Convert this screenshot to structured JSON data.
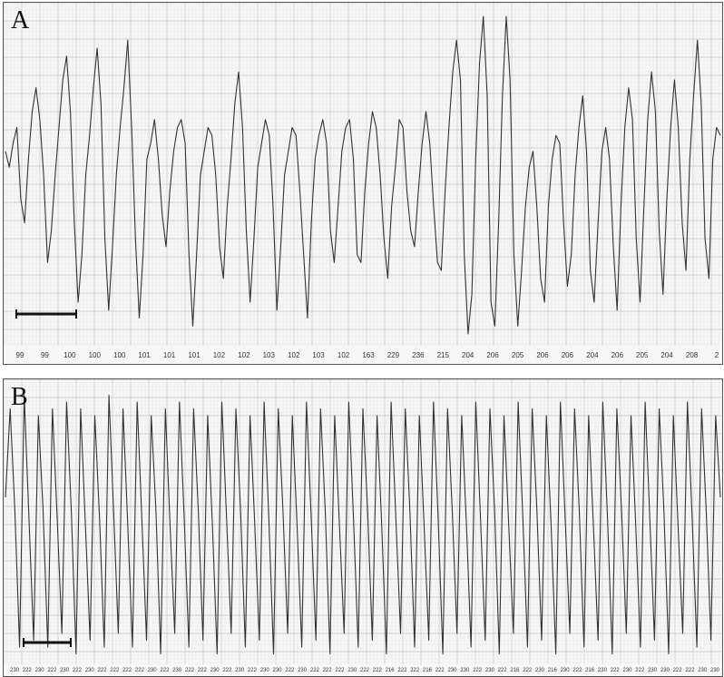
{
  "figure": {
    "panel_a_label": "A",
    "panel_b_label": "B"
  },
  "chart_data": [
    {
      "type": "line",
      "panel": "A",
      "title": "A",
      "xlabel": "",
      "ylabel": "",
      "grid": true,
      "scale_bar": true,
      "trace_color": "#333333",
      "grid_color": "#d8d8d8",
      "series": [
        {
          "values": [
            0.15,
            0.05,
            0.2,
            0.3,
            -0.15,
            -0.3,
            0.1,
            0.4,
            0.55,
            0.35,
            0.0,
            -0.55,
            -0.35,
            0.0,
            0.3,
            0.6,
            0.75,
            0.4,
            -0.3,
            -0.8,
            -0.5,
            0.0,
            0.25,
            0.55,
            0.8,
            0.45,
            -0.4,
            -0.85,
            -0.45,
            0.0,
            0.3,
            0.55,
            0.85,
            0.3,
            -0.4,
            -0.9,
            -0.5,
            0.1,
            0.2,
            0.35,
            0.1,
            -0.25,
            -0.45,
            -0.1,
            0.15,
            0.3,
            0.35,
            0.2,
            -0.5,
            -0.95,
            -0.5,
            0.0,
            0.15,
            0.3,
            0.25,
            0.0,
            -0.45,
            -0.65,
            -0.2,
            0.1,
            0.45,
            0.65,
            0.3,
            -0.35,
            -0.8,
            -0.4,
            0.05,
            0.2,
            0.35,
            0.25,
            -0.2,
            -0.85,
            -0.45,
            0.0,
            0.15,
            0.3,
            0.25,
            -0.1,
            -0.5,
            -0.9,
            -0.3,
            0.1,
            0.25,
            0.35,
            0.2,
            -0.35,
            -0.55,
            -0.2,
            0.15,
            0.3,
            0.35,
            0.1,
            -0.5,
            -0.55,
            -0.1,
            0.2,
            0.4,
            0.3,
            0.0,
            -0.4,
            -0.65,
            -0.2,
            0.05,
            0.35,
            0.3,
            -0.1,
            -0.35,
            -0.45,
            -0.1,
            0.2,
            0.4,
            0.2,
            -0.2,
            -0.55,
            -0.6,
            -0.1,
            0.3,
            0.65,
            0.85,
            0.6,
            -0.5,
            -1.0,
            -0.75,
            0.1,
            0.7,
            1.0,
            0.5,
            -0.8,
            -0.95,
            -0.3,
            0.5,
            1.0,
            0.6,
            -0.5,
            -0.95,
            -0.6,
            -0.2,
            0.05,
            0.15,
            -0.2,
            -0.65,
            -0.8,
            -0.2,
            0.1,
            0.25,
            0.2,
            -0.3,
            -0.7,
            -0.5,
            0.0,
            0.3,
            0.5,
            0.15,
            -0.6,
            -0.8,
            -0.3,
            0.15,
            0.3,
            0.1,
            -0.45,
            -0.85,
            -0.2,
            0.3,
            0.55,
            0.35,
            -0.4,
            -0.8,
            -0.2,
            0.35,
            0.65,
            0.4,
            -0.35,
            -0.75,
            -0.15,
            0.3,
            0.6,
            0.3,
            -0.3,
            -0.6,
            0.1,
            0.5,
            0.85,
            0.45,
            -0.4,
            -0.65,
            0.1,
            0.3,
            0.25
          ]
        }
      ],
      "x_labels": [
        "99",
        "99",
        "100",
        "100",
        "100",
        "101",
        "101",
        "101",
        "102",
        "102",
        "103",
        "102",
        "103",
        "102",
        "163",
        "229",
        "236",
        "215",
        "204",
        "206",
        "205",
        "206",
        "206",
        "204",
        "206",
        "205",
        "204",
        "208",
        "2"
      ]
    },
    {
      "type": "line",
      "panel": "B",
      "title": "B",
      "xlabel": "",
      "ylabel": "",
      "grid": true,
      "scale_bar": true,
      "trace_color": "#333333",
      "grid_color": "#d8d8d8",
      "series": [
        {
          "values": [
            0.2,
            0.85,
            0.1,
            -0.9,
            0.95,
            0.05,
            -0.85,
            0.8,
            0.1,
            -0.9,
            0.85,
            0.05,
            -0.8,
            0.9,
            0.1,
            -0.95,
            0.85,
            0.0,
            -0.85,
            0.8,
            0.05,
            -0.9,
            0.95,
            0.1,
            -0.8,
            0.85,
            0.0,
            -0.9,
            0.9,
            0.05,
            -0.85,
            0.8,
            0.1,
            -0.95,
            0.85,
            0.0,
            -0.8,
            0.9,
            0.05,
            -0.9,
            0.85,
            0.1,
            -0.85,
            0.8,
            0.0,
            -0.95,
            0.9,
            0.05,
            -0.8,
            0.85,
            0.1,
            -0.9,
            0.8,
            0.0,
            -0.85,
            0.9,
            0.05,
            -0.95,
            0.85,
            0.1,
            -0.8,
            0.8,
            0.0,
            -0.9,
            0.9,
            0.05,
            -0.85,
            0.85,
            0.1,
            -0.95,
            0.8,
            0.0,
            -0.8,
            0.9,
            0.05,
            -0.9,
            0.85,
            0.1,
            -0.85,
            0.8,
            0.0,
            -0.95,
            0.9,
            0.05,
            -0.8,
            0.85,
            0.1,
            -0.9,
            0.8,
            0.0,
            -0.85,
            0.9,
            0.05,
            -0.95,
            0.85,
            0.1,
            -0.8,
            0.8,
            0.0,
            -0.9,
            0.9,
            0.05,
            -0.85,
            0.85,
            0.1,
            -0.95,
            0.8,
            0.0,
            -0.8,
            0.9,
            0.05,
            -0.9,
            0.85,
            0.1,
            -0.85,
            0.8,
            0.0,
            -0.95,
            0.9,
            0.05,
            -0.8,
            0.85,
            0.1,
            -0.9,
            0.8,
            0.0,
            -0.85,
            0.9,
            0.05,
            -0.95,
            0.85,
            0.1,
            -0.8,
            0.8,
            0.0,
            -0.9,
            0.9,
            0.05,
            -0.85,
            0.85,
            0.1,
            -0.95,
            0.8,
            0.0,
            -0.8,
            0.9,
            0.05,
            -0.9,
            0.85,
            0.1,
            -0.85,
            0.8,
            0.2
          ]
        }
      ],
      "x_labels": [
        "230",
        "222",
        "230",
        "222",
        "230",
        "222",
        "230",
        "222",
        "222",
        "222",
        "222",
        "230",
        "222",
        "230",
        "222",
        "222",
        "230",
        "222",
        "230",
        "222",
        "230",
        "230",
        "222",
        "230",
        "222",
        "222",
        "222",
        "230",
        "222",
        "222",
        "216",
        "222",
        "222",
        "216",
        "222",
        "230",
        "230",
        "222",
        "230",
        "222",
        "216",
        "222",
        "230",
        "216",
        "230",
        "222",
        "216",
        "230",
        "222",
        "230",
        "222",
        "230",
        "230",
        "222",
        "222",
        "230",
        "230"
      ]
    }
  ]
}
